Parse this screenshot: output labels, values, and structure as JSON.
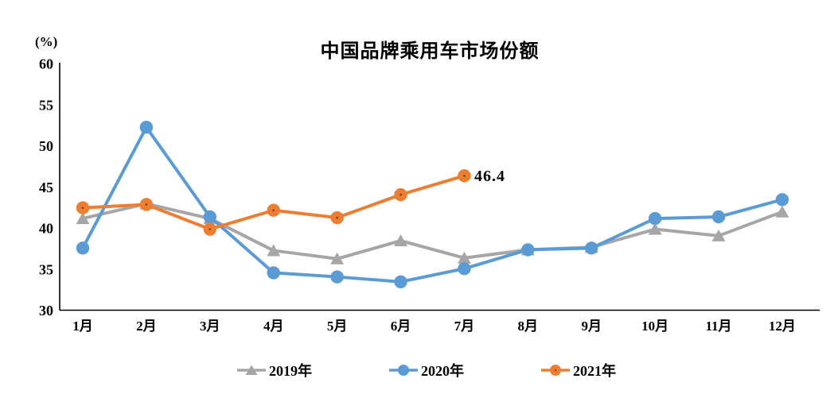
{
  "chart_data": {
    "type": "line",
    "title": "中国品牌乘用车市场份额",
    "y_axis_unit": "(%)",
    "xlabel": "",
    "ylabel": "",
    "ylim": [
      30,
      60
    ],
    "y_ticks": [
      "60",
      "55",
      "50",
      "45",
      "40",
      "35",
      "30"
    ],
    "y_tick_values": [
      60,
      55,
      50,
      45,
      40,
      35,
      30
    ],
    "grid": false,
    "legend_position": "bottom",
    "categories": [
      "1月",
      "2月",
      "3月",
      "4月",
      "5月",
      "6月",
      "7月",
      "8月",
      "9月",
      "10月",
      "11月",
      "12月"
    ],
    "series": [
      {
        "name": "2019年",
        "color": "#A6A6A6",
        "marker": "triangle",
        "values": [
          41.2,
          43.0,
          41.2,
          37.3,
          36.3,
          38.5,
          36.4,
          37.4,
          37.7,
          39.9,
          39.1,
          42.0
        ]
      },
      {
        "name": "2020年",
        "color": "#5B9BD5",
        "marker": "circle",
        "values": [
          37.6,
          52.3,
          41.4,
          34.6,
          34.1,
          33.5,
          35.1,
          37.4,
          37.6,
          41.2,
          41.4,
          43.5
        ]
      },
      {
        "name": "2021年",
        "color": "#ED7D31",
        "marker": "circle-dot",
        "marker_dot_color": "#843C0C",
        "values": [
          42.5,
          42.9,
          39.9,
          42.2,
          41.3,
          44.1,
          46.4,
          null,
          null,
          null,
          null,
          null
        ]
      }
    ],
    "annotation": {
      "text": "46.4",
      "series": "2021年",
      "category": "7月",
      "value": 46.4
    },
    "axis_color": "#000000"
  }
}
